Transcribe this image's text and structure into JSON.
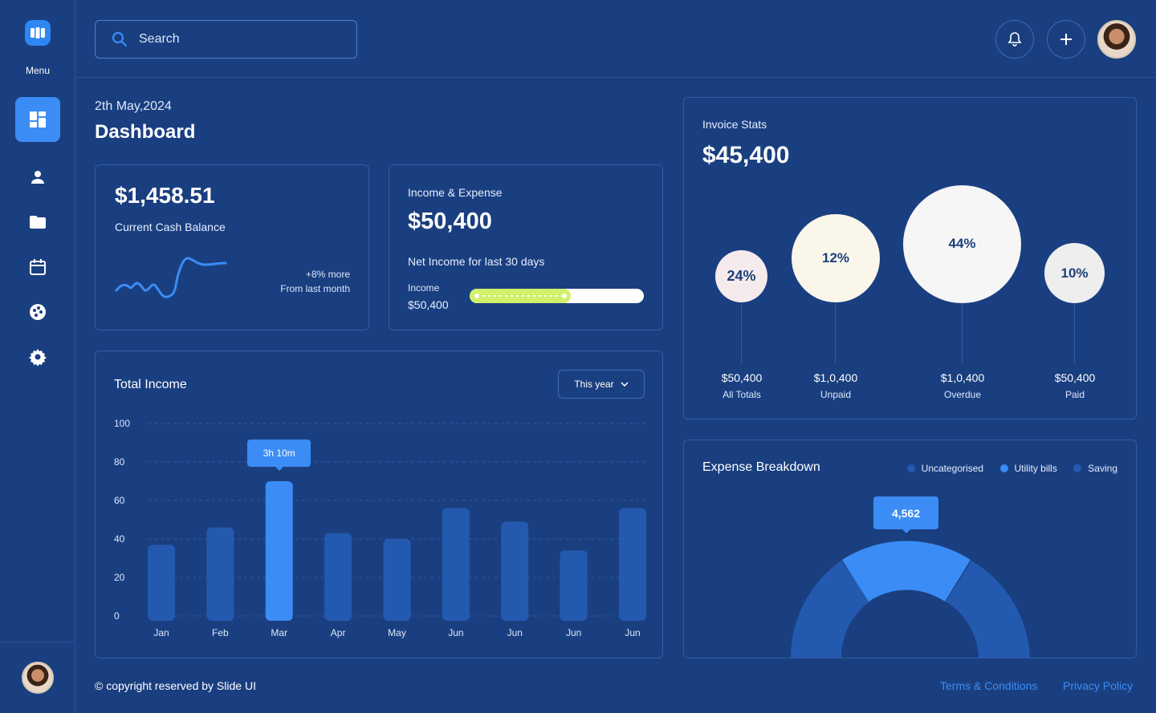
{
  "sidebar": {
    "menu_label": "Menu",
    "items": [
      {
        "icon": "dashboard-icon",
        "active": true
      },
      {
        "icon": "user-icon",
        "active": false
      },
      {
        "icon": "folder-icon",
        "active": false
      },
      {
        "icon": "calendar-icon",
        "active": false
      },
      {
        "icon": "palette-icon",
        "active": false
      },
      {
        "icon": "gear-icon",
        "active": false
      }
    ]
  },
  "header": {
    "search_placeholder": "Search"
  },
  "page": {
    "date": "2th May,2024",
    "title": "Dashboard"
  },
  "cash_card": {
    "amount": "$1,458.51",
    "label": "Current Cash Balance",
    "change": "+8% more",
    "change_sub": "From last month"
  },
  "income_expense": {
    "title": "Income & Expense",
    "amount": "$50,400",
    "subtitle": "Net Income for last 30 days",
    "income_label": "Income",
    "income_value": "$50,400",
    "progress": 0.58
  },
  "total_income": {
    "title": "Total Income",
    "period": "This year",
    "tooltip": "3h 10m",
    "highlight_index": 2
  },
  "chart_data": {
    "type": "bar",
    "title": "Total Income",
    "categories": [
      "Jan",
      "Feb",
      "Mar",
      "Apr",
      "May",
      "Jun",
      "Jun",
      "Jun",
      "Jun"
    ],
    "values": [
      37,
      46,
      70,
      43,
      40,
      56,
      49,
      34,
      56
    ],
    "yticks": [
      "100",
      "80",
      "60",
      "40",
      "20",
      "0"
    ],
    "ylim": [
      0,
      100
    ],
    "grid": true
  },
  "invoice": {
    "title": "Invoice Stats",
    "amount": "$45,400",
    "bubbles": [
      {
        "pct": "24%",
        "value": "$50,400",
        "label": "All Totals",
        "color": "#f5ebec"
      },
      {
        "pct": "12%",
        "value": "$1,0,400",
        "label": "Unpaid",
        "color": "#faf6ea"
      },
      {
        "pct": "44%",
        "value": "$1,0,400",
        "label": "Overdue",
        "color": "#f6f6f6"
      },
      {
        "pct": "10%",
        "value": "$50,400",
        "label": "Paid",
        "color": "#eeeeef"
      }
    ]
  },
  "expense": {
    "title": "Expense Breakdown",
    "legend": [
      {
        "label": "Uncategorised",
        "color": "#2459b0"
      },
      {
        "label": "Utility bills",
        "color": "#3b8cf5"
      },
      {
        "label": "Saving",
        "color": "#2459b0"
      }
    ],
    "tooltip": "4,562"
  },
  "footer": {
    "copyright": "© copyright reserved by Slide UI",
    "terms": "Terms & Conditions",
    "privacy": "Privacy Policy"
  }
}
